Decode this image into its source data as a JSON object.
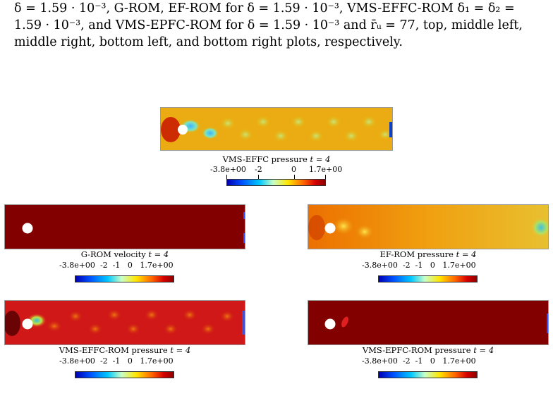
{
  "caption": {
    "line1": "δ = 1.59 · 10⁻³, G-ROM, EF-ROM for δ = 1.59 · 10⁻³, VMS-EFFC-ROM δ₁ = δ₂ =",
    "line2": "1.59 · 10⁻³, and VMS-EPFC-ROM for δ = 1.59 · 10⁻³ and r̄ᵤ = 77, top, middle left,",
    "line3": "middle right, bottom left, and bottom right plots, respectively."
  },
  "panels": {
    "top": {
      "title": "VMS-EFFC pressure",
      "time": "t = 4"
    },
    "mid_left": {
      "title": "G-ROM velocity",
      "time": "t = 4"
    },
    "mid_right": {
      "title": "EF-ROM pressure",
      "time": "t = 4"
    },
    "bot_left": {
      "title": "VMS-EFFC-ROM pressure",
      "time": "t = 4"
    },
    "bot_right": {
      "title": "VMS-EPFC-ROM pressure",
      "time": "t = 4"
    }
  },
  "colorbar_top": {
    "min": "-3.8e+00",
    "t1": "-2",
    "t2": "0",
    "max": "1.7e+00"
  },
  "colorbar": {
    "min": "-3.8e+00",
    "t1": "-2",
    "t2": "-1",
    "t3": "0",
    "max": "1.7e+00"
  }
}
